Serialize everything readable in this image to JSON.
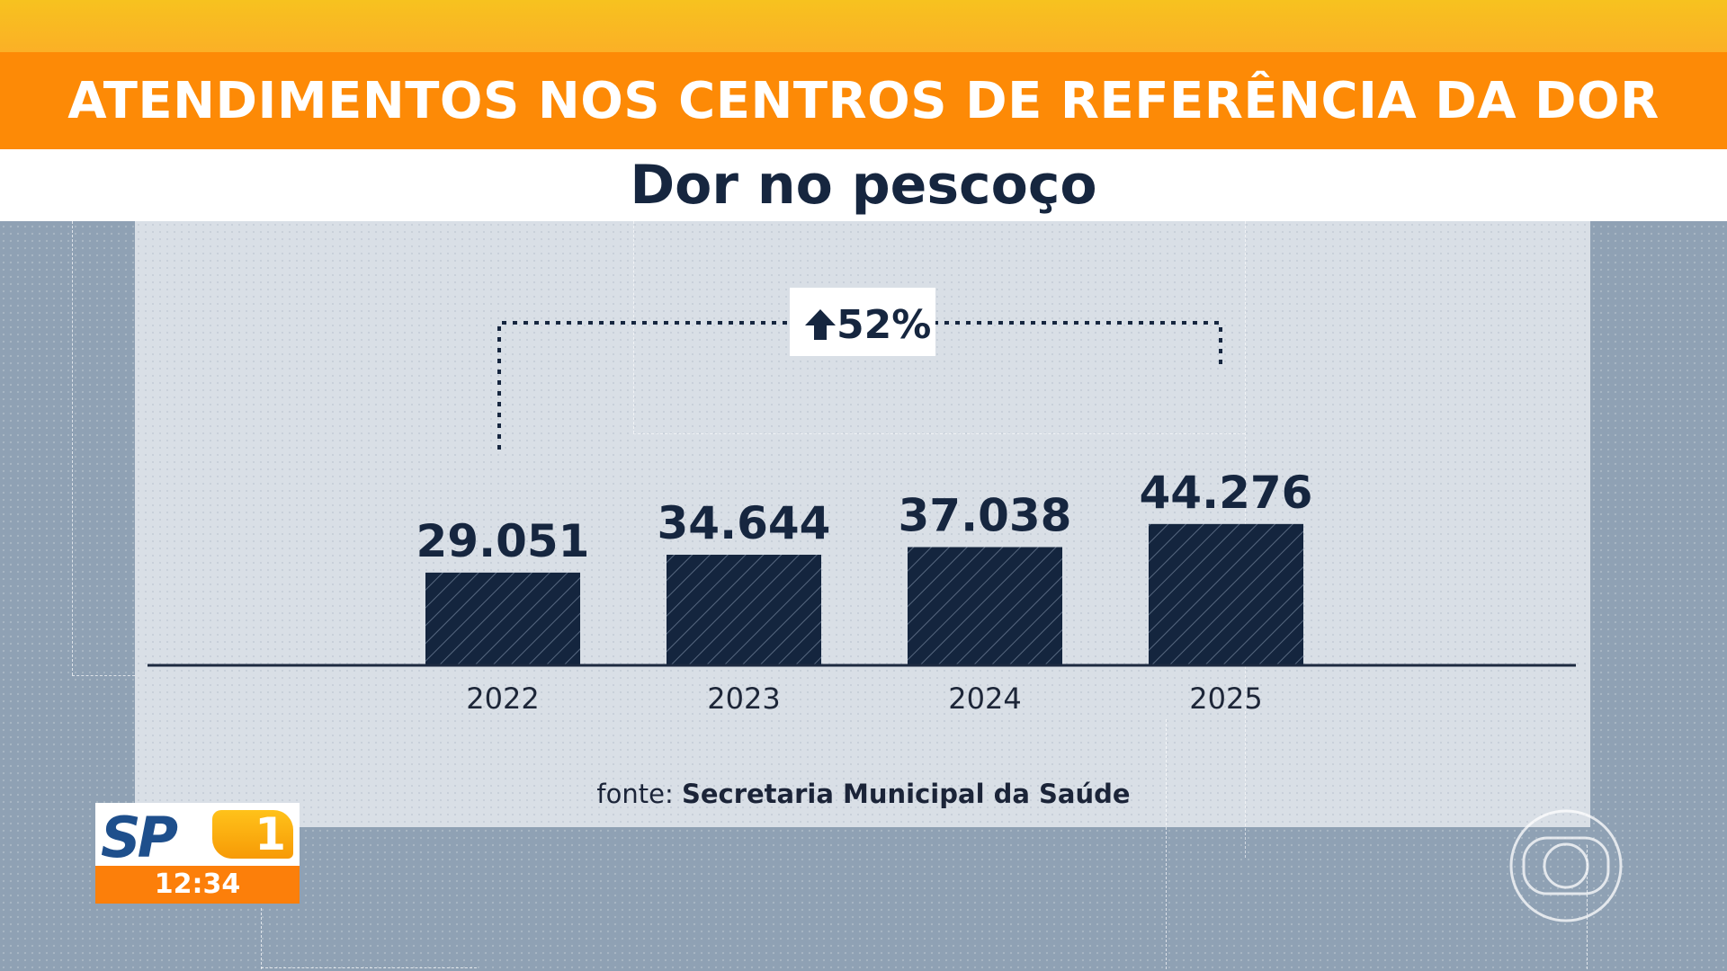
{
  "header": {
    "title": "ATENDIMENTOS NOS CENTROS DE REFERÊNCIA DA DOR",
    "subtitle": "Dor no pescoço"
  },
  "chart_data": {
    "type": "bar",
    "title": "Dor no pescoço",
    "categories": [
      "2022",
      "2023",
      "2024",
      "2025"
    ],
    "values": [
      29051,
      34644,
      37038,
      44276
    ],
    "value_labels": [
      "29.051",
      "34.644",
      "37.038",
      "44.276"
    ],
    "annotation": {
      "text": "52%",
      "icon": "arrow-up-icon",
      "from": "2022",
      "to": "2025"
    },
    "bar_color": "#14253e",
    "grid": false,
    "legend": "none"
  },
  "source": {
    "prefix": "fonte:",
    "name": "Secretaria Municipal da Saúde"
  },
  "logo": {
    "name": "SP1",
    "time": "12:34"
  },
  "colors": {
    "banner": "#fd8a06",
    "top_stripe": "#f7c21f",
    "text_dark": "#16263f",
    "panel": "#d9dfe6",
    "background": "#8fa1b4"
  }
}
